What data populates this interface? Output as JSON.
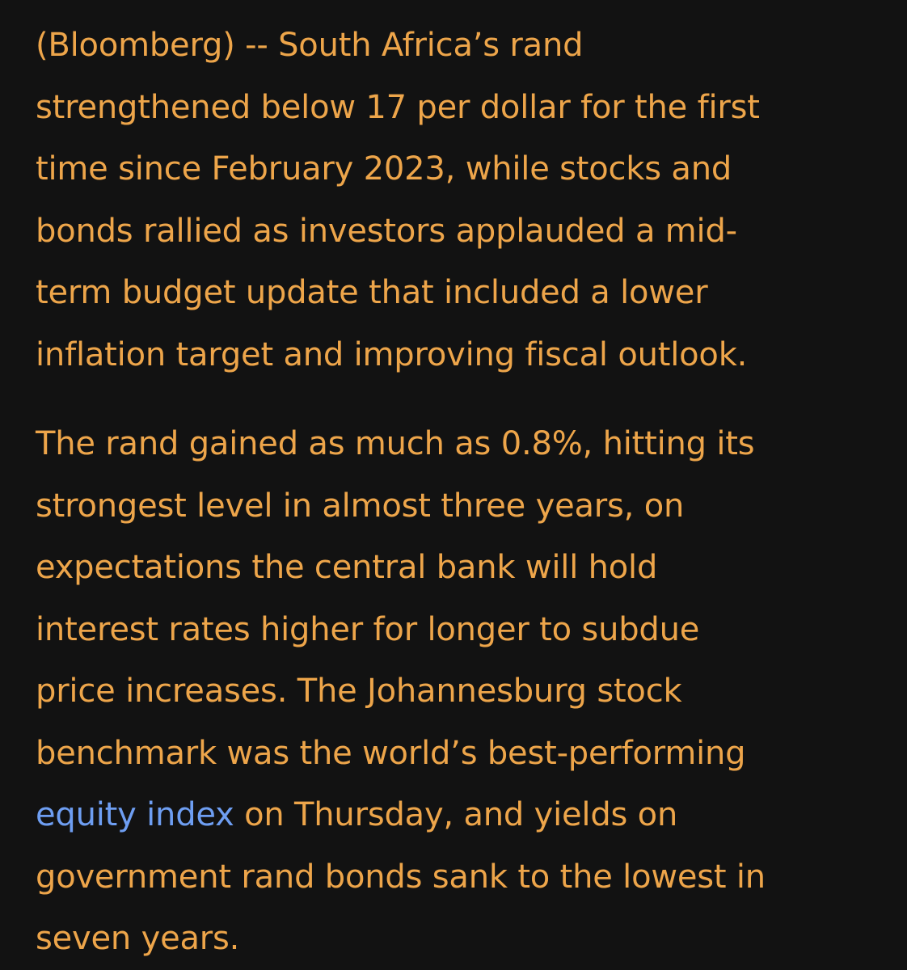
{
  "article": {
    "paragraph_1": {
      "lines": [
        "(Bloomberg) -- South Africa’s rand",
        "strengthened below 17 per dollar for the first",
        "time since February 2023, while stocks and",
        "bonds rallied as investors applauded a mid-",
        "term budget update that included a lower",
        "inflation target and improving fiscal outlook."
      ]
    },
    "paragraph_2": {
      "lines": [
        "The rand gained as much as 0.8%, hitting its",
        "strongest level in almost three years, on",
        "expectations the central bank will hold",
        "interest rates higher for longer to subdue",
        "price increases. The Johannesburg stock",
        "benchmark was the world’s best-performing"
      ],
      "link_text": "equity index",
      "link_after": " on Thursday, and yields on",
      "lines_after": [
        "government rand bonds sank to the lowest in",
        "seven years."
      ]
    }
  },
  "colors": {
    "background": "#121212",
    "text": "#EDA54A",
    "link": "#6E9EF2"
  }
}
